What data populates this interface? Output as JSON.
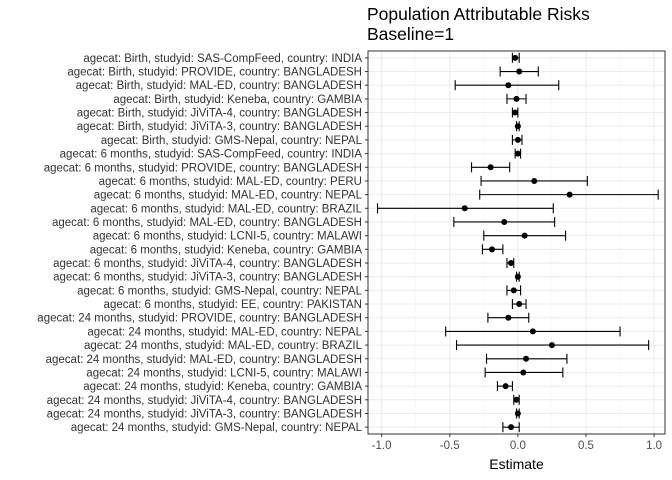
{
  "chart_data": {
    "type": "scatter",
    "title": "Population Attributable Risks",
    "subtitle": "Baseline=1",
    "xlabel": "Estimate",
    "ylabel": "",
    "xlim": [
      -1.1,
      1.08
    ],
    "x_ticks": [
      -1.0,
      -0.5,
      0.0,
      0.5,
      1.0
    ],
    "x_tick_labels": [
      "-1.0",
      "-0.5",
      "0.0",
      "0.5",
      "1.0"
    ],
    "grid": true,
    "theme": "bw",
    "colors": {
      "point": "#000000",
      "grid_major": "#ebebeb",
      "grid_minor": "#f5f5f5",
      "border": "#333333"
    },
    "rows": [
      {
        "label": "agecat: Birth, studyid: SAS-CompFeed, country: INDIA",
        "estimate": -0.02,
        "lower": -0.04,
        "upper": 0.01
      },
      {
        "label": "agecat: Birth, studyid: PROVIDE, country: BANGLADESH",
        "estimate": 0.01,
        "lower": -0.13,
        "upper": 0.15
      },
      {
        "label": "agecat: Birth, studyid: MAL-ED, country: BANGLADESH",
        "estimate": -0.07,
        "lower": -0.46,
        "upper": 0.3
      },
      {
        "label": "agecat: Birth, studyid: Keneba, country: GAMBIA",
        "estimate": -0.01,
        "lower": -0.08,
        "upper": 0.06
      },
      {
        "label": "agecat: Birth, studyid: JiViTA-4, country: BANGLADESH",
        "estimate": -0.02,
        "lower": -0.04,
        "upper": 0.0
      },
      {
        "label": "agecat: Birth, studyid: JiViTA-3, country: BANGLADESH",
        "estimate": 0.0,
        "lower": -0.01,
        "upper": 0.01
      },
      {
        "label": "agecat: Birth, studyid: GMS-Nepal, country: NEPAL",
        "estimate": 0.0,
        "lower": -0.04,
        "upper": 0.03
      },
      {
        "label": "agecat: 6 months, studyid: SAS-CompFeed, country: INDIA",
        "estimate": 0.0,
        "lower": -0.02,
        "upper": 0.02
      },
      {
        "label": "agecat: 6 months, studyid: PROVIDE, country: BANGLADESH",
        "estimate": -0.2,
        "lower": -0.34,
        "upper": -0.06
      },
      {
        "label": "agecat: 6 months, studyid: MAL-ED, country: PERU",
        "estimate": 0.12,
        "lower": -0.27,
        "upper": 0.51
      },
      {
        "label": "agecat: 6 months, studyid: MAL-ED, country: NEPAL",
        "estimate": 0.38,
        "lower": -0.28,
        "upper": 1.03
      },
      {
        "label": "agecat: 6 months, studyid: MAL-ED, country: BRAZIL",
        "estimate": -0.39,
        "lower": -1.03,
        "upper": 0.26
      },
      {
        "label": "agecat: 6 months, studyid: MAL-ED, country: BANGLADESH",
        "estimate": -0.1,
        "lower": -0.47,
        "upper": 0.27
      },
      {
        "label": "agecat: 6 months, studyid: LCNI-5, country: MALAWI",
        "estimate": 0.05,
        "lower": -0.25,
        "upper": 0.35
      },
      {
        "label": "agecat: 6 months, studyid: Keneba, country: GAMBIA",
        "estimate": -0.19,
        "lower": -0.26,
        "upper": -0.11
      },
      {
        "label": "agecat: 6 months, studyid: JiViTA-4, country: BANGLADESH",
        "estimate": -0.05,
        "lower": -0.08,
        "upper": -0.03
      },
      {
        "label": "agecat: 6 months, studyid: JiViTA-3, country: BANGLADESH",
        "estimate": 0.0,
        "lower": -0.01,
        "upper": 0.01
      },
      {
        "label": "agecat: 6 months, studyid: GMS-Nepal, country: NEPAL",
        "estimate": -0.03,
        "lower": -0.08,
        "upper": 0.02
      },
      {
        "label": "agecat: 6 months, studyid: EE, country: PAKISTAN",
        "estimate": 0.01,
        "lower": -0.04,
        "upper": 0.06
      },
      {
        "label": "agecat: 24 months, studyid: PROVIDE, country: BANGLADESH",
        "estimate": -0.07,
        "lower": -0.22,
        "upper": 0.08
      },
      {
        "label": "agecat: 24 months, studyid: MAL-ED, country: NEPAL",
        "estimate": 0.11,
        "lower": -0.53,
        "upper": 0.75
      },
      {
        "label": "agecat: 24 months, studyid: MAL-ED, country: BRAZIL",
        "estimate": 0.25,
        "lower": -0.45,
        "upper": 0.96
      },
      {
        "label": "agecat: 24 months, studyid: MAL-ED, country: BANGLADESH",
        "estimate": 0.06,
        "lower": -0.23,
        "upper": 0.36
      },
      {
        "label": "agecat: 24 months, studyid: LCNI-5, country: MALAWI",
        "estimate": 0.04,
        "lower": -0.24,
        "upper": 0.33
      },
      {
        "label": "agecat: 24 months, studyid: Keneba, country: GAMBIA",
        "estimate": -0.09,
        "lower": -0.15,
        "upper": -0.04
      },
      {
        "label": "agecat: 24 months, studyid: JiViTA-4, country: BANGLADESH",
        "estimate": -0.01,
        "lower": -0.03,
        "upper": 0.01
      },
      {
        "label": "agecat: 24 months, studyid: JiViTA-3, country: BANGLADESH",
        "estimate": 0.0,
        "lower": -0.01,
        "upper": 0.01
      },
      {
        "label": "agecat: 24 months, studyid: GMS-Nepal, country: NEPAL",
        "estimate": -0.05,
        "lower": -0.11,
        "upper": 0.01
      }
    ]
  }
}
